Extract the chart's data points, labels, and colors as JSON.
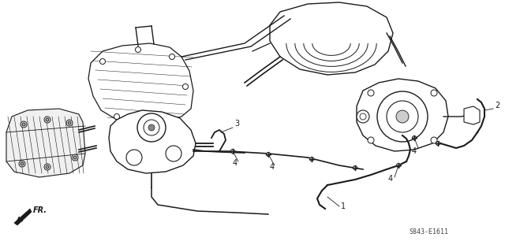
{
  "diagram_code": "S843-E1611",
  "background_color": "#ffffff",
  "line_color": "#1a1a1a",
  "figsize": [
    6.4,
    3.06
  ],
  "dpi": 100,
  "gray": "#888888",
  "lightgray": "#cccccc"
}
